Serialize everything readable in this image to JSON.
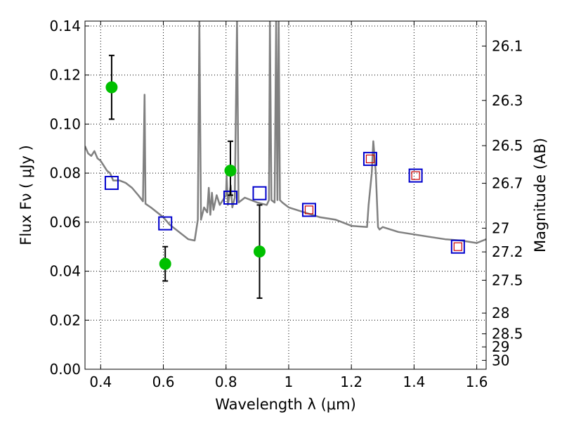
{
  "chart_data": {
    "type": "scatter",
    "title": "",
    "xlabel": "Wavelength  λ (μm)",
    "ylabel": "Flux  Fν  ( μJy )",
    "ylabel_right": "Magnitude (AB)",
    "xlim": [
      0.35,
      1.63
    ],
    "ylim": [
      0.0,
      0.142
    ],
    "grid": true,
    "legend": "none",
    "x_ticks": [
      0.4,
      0.6,
      0.8,
      1.0,
      1.2,
      1.4,
      1.6
    ],
    "x_tick_labels": [
      "0.4",
      "0.6",
      "0.8",
      "1",
      "1.2",
      "1.4",
      "1.6"
    ],
    "y_ticks": [
      0.0,
      0.02,
      0.04,
      0.06,
      0.08,
      0.1,
      0.12,
      0.14
    ],
    "y_tick_labels": [
      "0.00",
      "0.02",
      "0.04",
      "0.06",
      "0.08",
      "0.10",
      "0.12",
      "0.14"
    ],
    "right_ticks": [
      {
        "mag": 26.1,
        "label": "26.1"
      },
      {
        "mag": 26.3,
        "label": "26.3"
      },
      {
        "mag": 26.5,
        "label": "26.5"
      },
      {
        "mag": 26.7,
        "label": "26.7"
      },
      {
        "mag": 27.0,
        "label": "27"
      },
      {
        "mag": 27.2,
        "label": "27.2"
      },
      {
        "mag": 27.5,
        "label": "27.5"
      },
      {
        "mag": 28.0,
        "label": "28"
      },
      {
        "mag": 28.5,
        "label": "28.5"
      },
      {
        "mag": 29.0,
        "label": "29"
      },
      {
        "mag": 30.0,
        "label": "30"
      }
    ],
    "colors": {
      "observed": "#00c000",
      "errorbar": "#000000",
      "model_square": "#0000cc",
      "model_inner_square": "#cc0000",
      "spectrum": "#808080",
      "grid": "#000000"
    },
    "series": [
      {
        "kind": "observed_points_with_errors",
        "x": [
          0.435,
          0.606,
          0.814,
          0.907
        ],
        "y": [
          0.115,
          0.043,
          0.081,
          0.048
        ],
        "yerr_low": [
          0.102,
          0.036,
          0.071,
          0.029
        ],
        "yerr_high": [
          0.128,
          0.05,
          0.093,
          0.067
        ]
      },
      {
        "kind": "model_photometry",
        "x": [
          0.435,
          0.606,
          0.814,
          0.907,
          1.065,
          1.26,
          1.405,
          1.54
        ],
        "y": [
          0.076,
          0.0595,
          0.07,
          0.0718,
          0.065,
          0.0858,
          0.079,
          0.05
        ],
        "inner_marker": [
          false,
          false,
          false,
          false,
          true,
          true,
          true,
          true
        ]
      },
      {
        "kind": "spectrum",
        "points": [
          [
            0.35,
            0.091
          ],
          [
            0.36,
            0.088
          ],
          [
            0.37,
            0.087
          ],
          [
            0.38,
            0.089
          ],
          [
            0.39,
            0.086
          ],
          [
            0.4,
            0.085
          ],
          [
            0.41,
            0.083
          ],
          [
            0.42,
            0.081
          ],
          [
            0.43,
            0.08
          ],
          [
            0.44,
            0.077
          ],
          [
            0.46,
            0.077
          ],
          [
            0.48,
            0.076
          ],
          [
            0.5,
            0.074
          ],
          [
            0.52,
            0.071
          ],
          [
            0.535,
            0.0685
          ],
          [
            0.54,
            0.112
          ],
          [
            0.543,
            0.0675
          ],
          [
            0.56,
            0.066
          ],
          [
            0.58,
            0.064
          ],
          [
            0.6,
            0.062
          ],
          [
            0.62,
            0.059
          ],
          [
            0.64,
            0.057
          ],
          [
            0.66,
            0.055
          ],
          [
            0.68,
            0.053
          ],
          [
            0.7,
            0.0525
          ],
          [
            0.71,
            0.061
          ],
          [
            0.715,
            0.142
          ],
          [
            0.72,
            0.061
          ],
          [
            0.73,
            0.066
          ],
          [
            0.74,
            0.064
          ],
          [
            0.745,
            0.074
          ],
          [
            0.75,
            0.063
          ],
          [
            0.755,
            0.072
          ],
          [
            0.76,
            0.065
          ],
          [
            0.77,
            0.071
          ],
          [
            0.78,
            0.067
          ],
          [
            0.79,
            0.069
          ],
          [
            0.8,
            0.071
          ],
          [
            0.802,
            0.079
          ],
          [
            0.806,
            0.067
          ],
          [
            0.81,
            0.07
          ],
          [
            0.815,
            0.075
          ],
          [
            0.82,
            0.066
          ],
          [
            0.828,
            0.07
          ],
          [
            0.835,
            0.142
          ],
          [
            0.84,
            0.068
          ],
          [
            0.86,
            0.07
          ],
          [
            0.88,
            0.069
          ],
          [
            0.9,
            0.068
          ],
          [
            0.93,
            0.067
          ],
          [
            0.937,
            0.069
          ],
          [
            0.94,
            0.142
          ],
          [
            0.945,
            0.069
          ],
          [
            0.955,
            0.068
          ],
          [
            0.96,
            0.142
          ],
          [
            0.964,
            0.069
          ],
          [
            0.968,
            0.142
          ],
          [
            0.972,
            0.069
          ],
          [
            0.98,
            0.068
          ],
          [
            1.0,
            0.066
          ],
          [
            1.05,
            0.064
          ],
          [
            1.1,
            0.062
          ],
          [
            1.15,
            0.061
          ],
          [
            1.2,
            0.0585
          ],
          [
            1.25,
            0.058
          ],
          [
            1.255,
            0.067
          ],
          [
            1.265,
            0.08
          ],
          [
            1.27,
            0.093
          ],
          [
            1.278,
            0.08
          ],
          [
            1.285,
            0.058
          ],
          [
            1.29,
            0.057
          ],
          [
            1.3,
            0.058
          ],
          [
            1.35,
            0.056
          ],
          [
            1.4,
            0.055
          ],
          [
            1.45,
            0.054
          ],
          [
            1.5,
            0.053
          ],
          [
            1.55,
            0.0525
          ],
          [
            1.6,
            0.0515
          ],
          [
            1.63,
            0.053
          ]
        ]
      }
    ]
  }
}
